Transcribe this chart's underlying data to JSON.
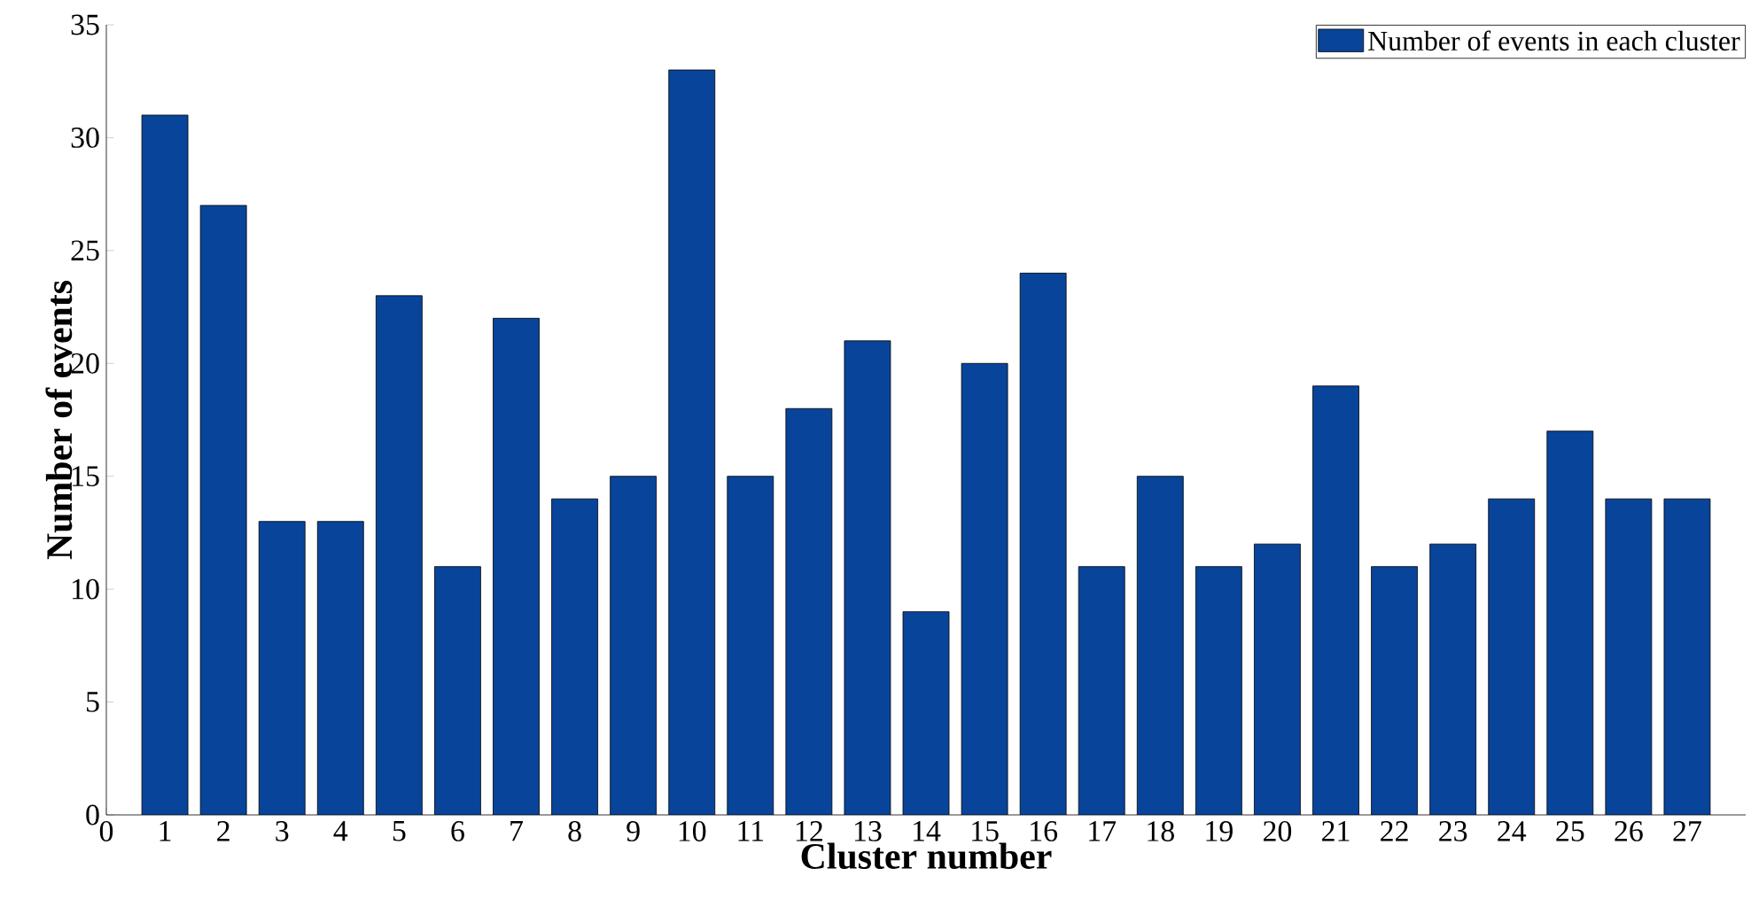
{
  "chart_data": {
    "type": "bar",
    "xlabel": "Cluster number",
    "ylabel": "Number of events",
    "x": [
      1,
      2,
      3,
      4,
      5,
      6,
      7,
      8,
      9,
      10,
      11,
      12,
      13,
      14,
      15,
      16,
      17,
      18,
      19,
      20,
      21,
      22,
      23,
      24,
      25,
      26,
      27
    ],
    "series": [
      {
        "name": "Number of events in each cluster",
        "color": "#08449a",
        "values": [
          31,
          27,
          13,
          13,
          23,
          11,
          22,
          14,
          15,
          33,
          15,
          18,
          21,
          9,
          20,
          24,
          11,
          15,
          11,
          12,
          19,
          11,
          12,
          14,
          17,
          14,
          14
        ]
      }
    ],
    "xlim": [
      0,
      28
    ],
    "xticks": [
      0,
      1,
      2,
      3,
      4,
      5,
      6,
      7,
      8,
      9,
      10,
      11,
      12,
      13,
      14,
      15,
      16,
      17,
      18,
      19,
      20,
      21,
      22,
      23,
      24,
      25,
      26,
      27
    ],
    "ylim": [
      0,
      35
    ],
    "yticks": [
      0,
      5,
      10,
      15,
      20,
      25,
      30,
      35
    ],
    "grid": false,
    "legend": "top right"
  }
}
